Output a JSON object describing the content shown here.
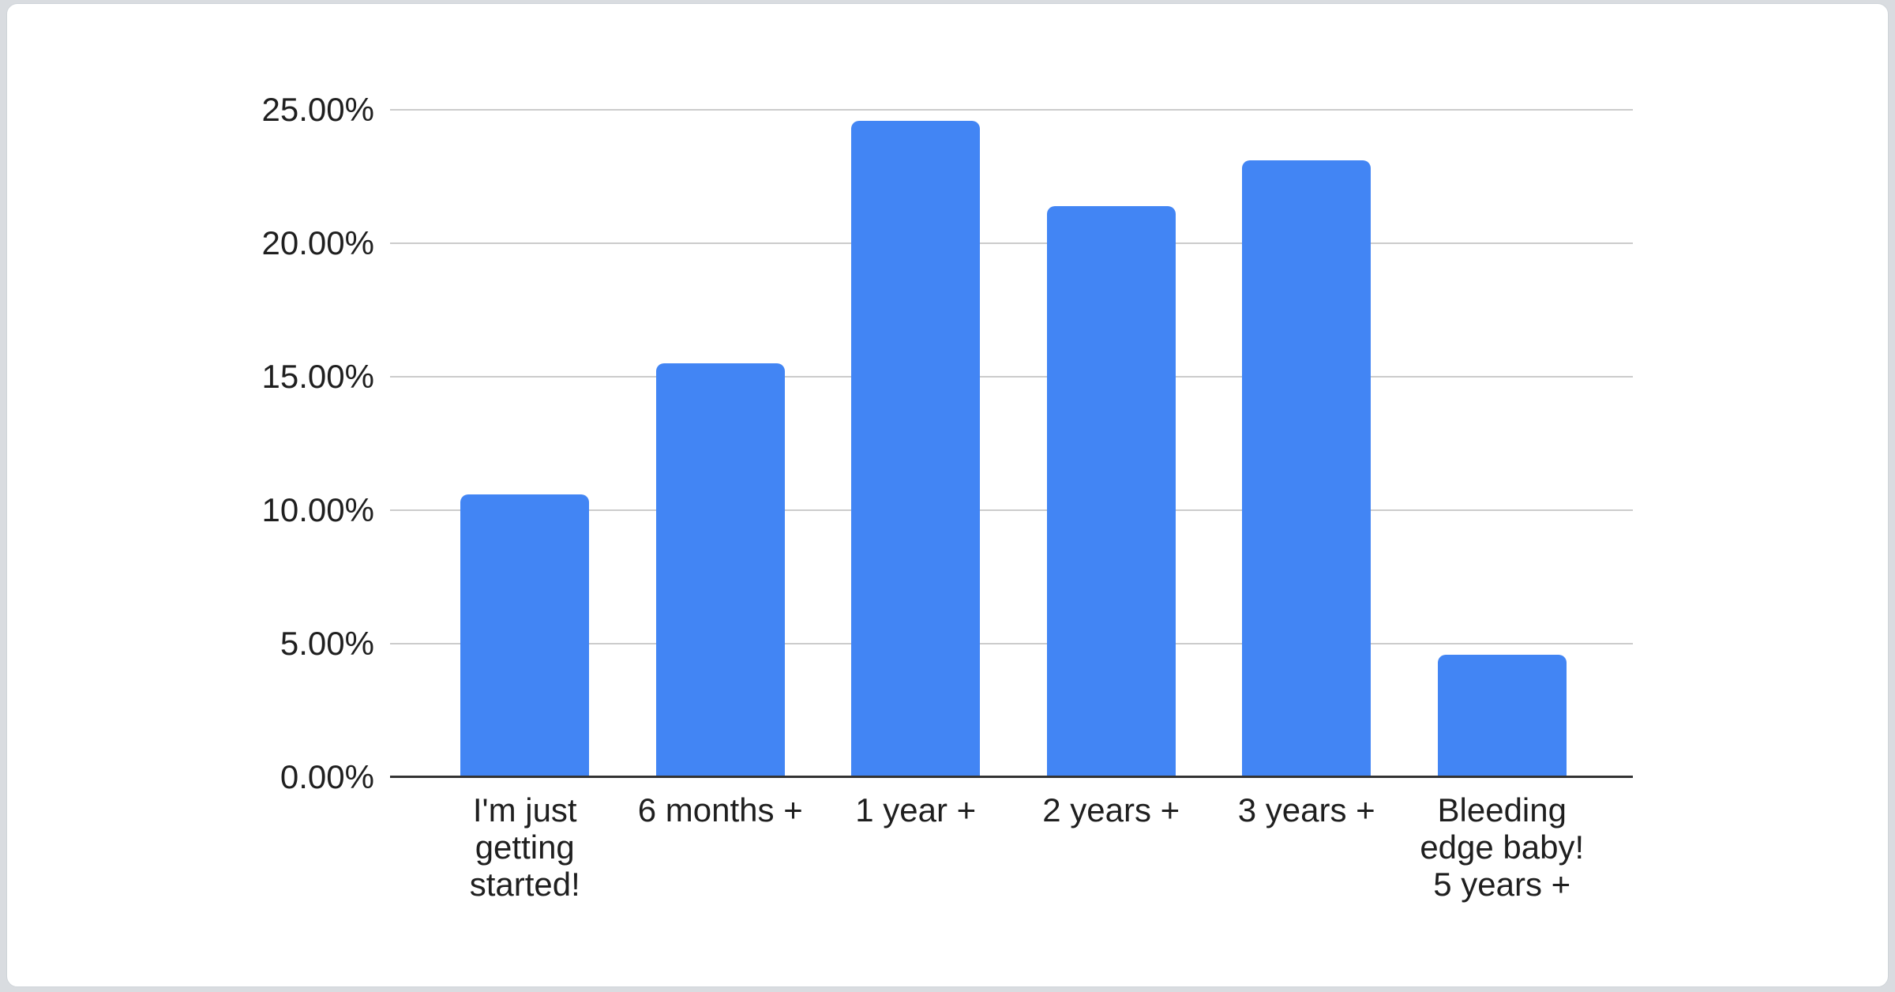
{
  "page": {
    "background_color": "#d9dce0",
    "card_background": "#ffffff",
    "card_border": "#cfd4d9"
  },
  "chart_data": {
    "type": "bar",
    "title": "",
    "xlabel": "",
    "ylabel": "",
    "categories": [
      "I'm just getting started!",
      "6 months +",
      "1 year +",
      "2 years +",
      "3 years +",
      "Bleeding edge baby! 5 years +"
    ],
    "category_lines": [
      [
        "I'm just",
        "getting",
        "started!"
      ],
      [
        "6 months +"
      ],
      [
        "1 year +"
      ],
      [
        "2 years +"
      ],
      [
        "3 years +"
      ],
      [
        "Bleeding",
        "edge baby!",
        "5 years +"
      ]
    ],
    "values": [
      10.6,
      15.5,
      24.6,
      21.4,
      23.1,
      4.6
    ],
    "value_unit": "%",
    "ylim": [
      0,
      25
    ],
    "y_ticks": [
      {
        "value": 0,
        "label": "0.00%"
      },
      {
        "value": 5,
        "label": "5.00%"
      },
      {
        "value": 10,
        "label": "10.00%"
      },
      {
        "value": 15,
        "label": "15.00%"
      },
      {
        "value": 20,
        "label": "20.00%"
      },
      {
        "value": 25,
        "label": "25.00%"
      }
    ],
    "grid": true,
    "legend": "none",
    "colors": {
      "bar": "#4285f4",
      "gridline": "#cccccc",
      "axis_line": "#333333",
      "label_text": "#1f1f1f"
    }
  }
}
